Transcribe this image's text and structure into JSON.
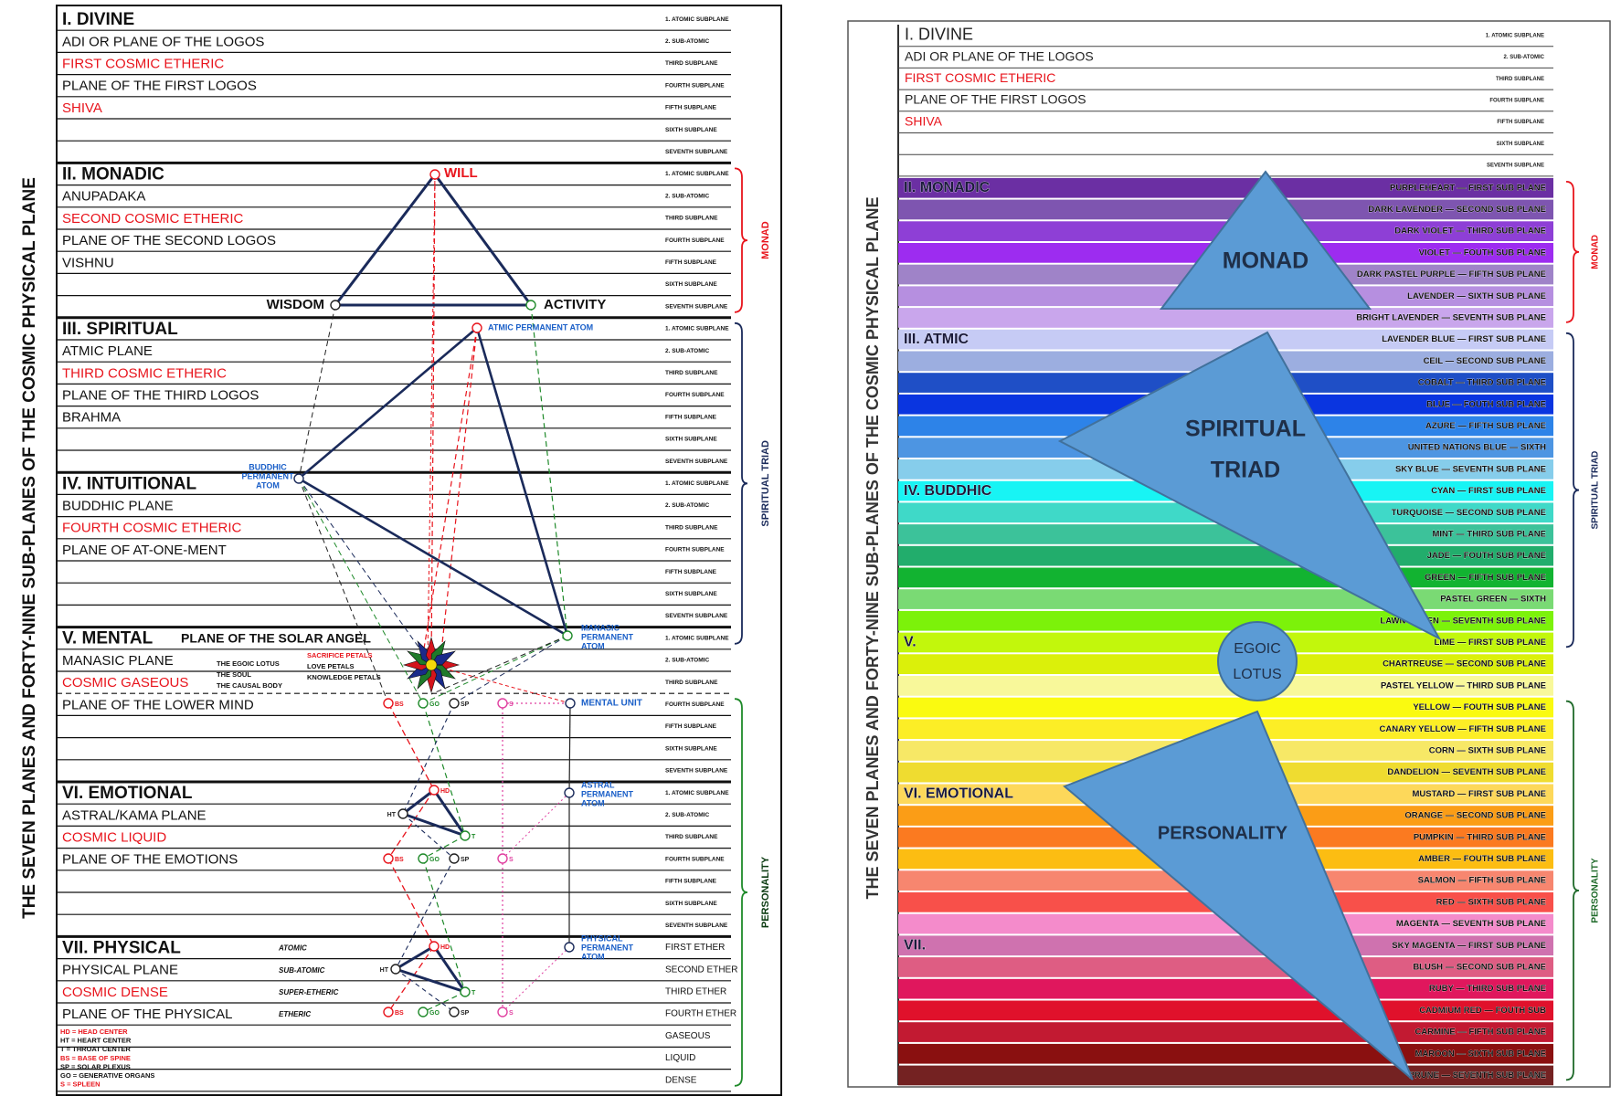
{
  "left": {
    "side_title": "THE SEVEN PLANES AND FORTY-NINE SUB-PLANES OF THE COSMIC PHYSICAL PLANE",
    "planes": [
      {
        "rows": [
          {
            "text": "I. DIVINE",
            "sub": "1. ATOMIC SUBPLANE"
          },
          {
            "text": "ADI OR PLANE OF THE LOGOS",
            "sub": "2. SUB-ATOMIC"
          },
          {
            "text": "FIRST COSMIC ETHERIC",
            "color": "#e8141c",
            "sub": "THIRD SUBPLANE"
          },
          {
            "text": "PLANE OF THE FIRST LOGOS",
            "sub": "FOURTH SUBPLANE"
          },
          {
            "text": "SHIVA",
            "color": "#e8141c",
            "sub": "FIFTH SUBPLANE"
          },
          {
            "sub": "SIXTH SUBPLANE"
          },
          {
            "sub": "SEVENTH SUBPLANE"
          }
        ]
      },
      {
        "rows": [
          {
            "text": "II. MONADIC",
            "sub": "1. ATOMIC SUBPLANE"
          },
          {
            "text": "ANUPADAKA",
            "sub": "2. SUB-ATOMIC"
          },
          {
            "text": "SECOND COSMIC ETHERIC",
            "color": "#e8141c",
            "sub": "THIRD SUBPLANE"
          },
          {
            "text": "PLANE OF THE SECOND LOGOS",
            "sub": "FOURTH SUBPLANE"
          },
          {
            "text": "VISHNU",
            "sub": "FIFTH SUBPLANE"
          },
          {
            "sub": "SIXTH SUBPLANE"
          },
          {
            "sub": "SEVENTH SUBPLANE"
          }
        ]
      },
      {
        "rows": [
          {
            "text": "III. SPIRITUAL",
            "sub": "1. ATOMIC SUBPLANE"
          },
          {
            "text": "ATMIC PLANE",
            "sub": "2. SUB-ATOMIC"
          },
          {
            "text": "THIRD COSMIC ETHERIC",
            "color": "#e8141c",
            "sub": "THIRD SUBPLANE"
          },
          {
            "text": "PLANE OF THE THIRD LOGOS",
            "sub": "FOURTH SUBPLANE"
          },
          {
            "text": "BRAHMA",
            "sub": "FIFTH SUBPLANE"
          },
          {
            "sub": "SIXTH SUBPLANE"
          },
          {
            "sub": "SEVENTH SUBPLANE"
          }
        ]
      },
      {
        "rows": [
          {
            "text": "IV. INTUITIONAL",
            "sub": "1. ATOMIC SUBPLANE"
          },
          {
            "text": "BUDDHIC PLANE",
            "sub": "2. SUB-ATOMIC"
          },
          {
            "text": "FOURTH COSMIC ETHERIC",
            "color": "#e8141c",
            "sub": "THIRD SUBPLANE"
          },
          {
            "text": "PLANE OF AT-ONE-MENT",
            "sub": "FOURTH SUBPLANE"
          },
          {
            "sub": "FIFTH SUBPLANE"
          },
          {
            "sub": "SIXTH SUBPLANE"
          },
          {
            "sub": "SEVENTH SUBPLANE"
          }
        ]
      },
      {
        "rows": [
          {
            "text": "V. MENTAL",
            "aside": "PLANE OF THE SOLAR ANGEL",
            "sub": "1. ATOMIC SUBPLANE"
          },
          {
            "text": "MANASIC PLANE",
            "sub": "2. SUB-ATOMIC"
          },
          {
            "text": "COSMIC GASEOUS",
            "color": "#e8141c",
            "sub": "THIRD SUBPLANE"
          },
          {
            "text": "PLANE OF THE LOWER MIND",
            "sub": "FOURTH SUBPLANE"
          },
          {
            "sub": "FIFTH SUBPLANE"
          },
          {
            "sub": "SIXTH SUBPLANE"
          },
          {
            "sub": "SEVENTH SUBPLANE"
          }
        ]
      },
      {
        "rows": [
          {
            "text": "VI. EMOTIONAL",
            "sub": "1. ATOMIC SUBPLANE"
          },
          {
            "text": "ASTRAL/KAMA PLANE",
            "sub": "2. SUB-ATOMIC"
          },
          {
            "text": "COSMIC LIQUID",
            "color": "#e8141c",
            "sub": "THIRD SUBPLANE"
          },
          {
            "text": "PLANE OF THE EMOTIONS",
            "sub": "FOURTH SUBPLANE"
          },
          {
            "sub": "FIFTH SUBPLANE"
          },
          {
            "sub": "SIXTH SUBPLANE"
          },
          {
            "sub": "SEVENTH SUBPLANE"
          }
        ]
      },
      {
        "rows": [
          {
            "text": "VII. PHYSICAL",
            "aside": "ATOMIC",
            "sub": "FIRST ETHER"
          },
          {
            "text": "PHYSICAL PLANE",
            "aside": "SUB-ATOMIC",
            "sub": "SECOND ETHER"
          },
          {
            "text": "COSMIC DENSE",
            "color": "#e8141c",
            "aside": "SUPER-ETHERIC",
            "sub": "THIRD ETHER"
          },
          {
            "text": "PLANE OF THE PHYSICAL",
            "aside": "ETHERIC",
            "sub": "FOURTH ETHER"
          },
          {
            "sub": "GASEOUS"
          },
          {
            "sub": "LIQUID"
          },
          {
            "sub": "DENSE"
          }
        ]
      }
    ],
    "brackets": [
      "MONAD",
      "SPIRITUAL TRIAD",
      "PERSONALITY"
    ],
    "triangle": {
      "will": "WILL",
      "wisdom": "WISDOM",
      "activity": "ACTIVITY"
    },
    "atoms": {
      "atmic": "ATMIC PERMANENT ATOM",
      "buddhic": [
        "BUDDHIC",
        "PERMANENT",
        "ATOM"
      ],
      "manasic": [
        "MANASIC",
        "PERMANENT",
        "ATOM"
      ],
      "mental_unit": "MENTAL UNIT",
      "astral": [
        "ASTRAL",
        "PERMANENT",
        "ATOM"
      ],
      "physical": [
        "PHYSICAL",
        "PERMANENT",
        "ATOM"
      ]
    },
    "lotus": {
      "names": [
        "THE EGOIC LOTUS",
        "THE SOUL",
        "THE CAUSAL BODY"
      ],
      "petals": [
        "SACRIFICE PETALS",
        "LOVE PETALS",
        "KNOWLEDGE PETALS"
      ]
    },
    "centers": [
      "HD",
      "HT",
      "T",
      "BS",
      "GO",
      "SP",
      "S"
    ],
    "legend": [
      "HD = HEAD CENTER",
      "HT = HEART CENTER",
      "T = THROAT CENTER",
      "BS = BASE OF SPINE",
      "SP = SOLAR PLEXUS",
      "GO = GENERATIVE ORGANS",
      "S = SPLEEN"
    ]
  },
  "right": {
    "side_title": "THE SEVEN PLANES AND FORTY-NINE SUB-PLANES OF THE COSMIC PHYSICAL PLANE",
    "planes": [
      {
        "header": "II. MONADIC",
        "rows": [
          {
            "label": "PURPLEHEART — FIRST SUB PLANE",
            "color": "#6b2fa3"
          },
          {
            "label": "DARK LAVENDER — SECOND SUB PLANE",
            "color": "#7e55b0"
          },
          {
            "label": "DARK VIOLET — THIRD SUB PLANE",
            "color": "#8e3fd6"
          },
          {
            "label": "VIOLET — FOUTH SUB PLANE",
            "color": "#9d2cf0"
          },
          {
            "label": "DARK PASTEL PURPLE — FIFTH SUB PLANE",
            "color": "#9f83c8"
          },
          {
            "label": "LAVENDER — SIXTH SUB PLANE",
            "color": "#b68fe0"
          },
          {
            "label": "BRIGHT LAVENDER — SEVENTH SUB PLANE",
            "color": "#c9a6ec"
          }
        ]
      },
      {
        "header": "III. ATMIC",
        "rows": [
          {
            "label": "LAVENDER BLUE — FIRST SUB PLANE",
            "color": "#c6cbf5"
          },
          {
            "label": "CEIL — SECOND SUB PLANE",
            "color": "#9caee0"
          },
          {
            "label": "COBALT — THIRD SUB PLANE",
            "color": "#1f4fc6"
          },
          {
            "label": "BLUE — FOUTH SUB PLANE",
            "color": "#0a35e0"
          },
          {
            "label": "AZURE — FIFTH SUB PLANE",
            "color": "#2d83e8"
          },
          {
            "label": "UNITED NATIONS BLUE — SIXTH",
            "color": "#4d95e2"
          },
          {
            "label": "SKY BLUE — SEVENTH SUB PLANE",
            "color": "#86cdeb"
          }
        ]
      },
      {
        "header": "IV. BUDDHIC",
        "rows": [
          {
            "label": "CYAN — FIRST SUB PLANE",
            "color": "#18f4f4"
          },
          {
            "label": "TURQUOISE — SECOND SUB PLANE",
            "color": "#3fd9c8"
          },
          {
            "label": "MINT — THIRD SUB PLANE",
            "color": "#3cc29a"
          },
          {
            "label": "JADE — FOUTH SUB PLANE",
            "color": "#22ad6c"
          },
          {
            "label": "GREEN — FIFTH SUB PLANE",
            "color": "#12b331"
          },
          {
            "label": "PASTEL GREEN — SIXTH",
            "color": "#7ada74"
          },
          {
            "label": "LAWN GREEN — SEVENTH SUB PLANE",
            "color": "#7cf20a"
          }
        ]
      },
      {
        "header": "V.",
        "rows": [
          {
            "label": "LIME — FIRST SUB PLANE",
            "color": "#c2f70c"
          },
          {
            "label": "CHARTREUSE — SECOND SUB PLANE",
            "color": "#dbf00a"
          },
          {
            "label": "PASTEL YELLOW — THIRD SUB PLANE",
            "color": "#f8f89a"
          },
          {
            "label": "YELLOW — FOUTH SUB PLANE",
            "color": "#fafa10"
          },
          {
            "label": "CANARY YELLOW — FIFTH SUB PLANE",
            "color": "#fcee26"
          },
          {
            "label": "CORN — SIXTH SUB PLANE",
            "color": "#f7e866"
          },
          {
            "label": "DANDELION — SEVENTH SUB PLANE",
            "color": "#efdc30"
          }
        ]
      },
      {
        "header": "VI. EMOTIONAL",
        "rows": [
          {
            "label": "MUSTARD — FIRST SUB PLANE",
            "color": "#fdd85a"
          },
          {
            "label": "ORANGE — SECOND SUB PLANE",
            "color": "#fb9d16"
          },
          {
            "label": "PUMPKIN — THIRD SUB PLANE",
            "color": "#fb7a20"
          },
          {
            "label": "AMBER — FOUTH SUB PLANE",
            "color": "#fcbd12"
          },
          {
            "label": "SALMON — FIFTH SUB PLANE",
            "color": "#f7866f"
          },
          {
            "label": "RED — SIXTH SUB PLANE",
            "color": "#f8504a"
          },
          {
            "label": "MAGENTA — SEVENTH SUB PLANE",
            "color": "#f48bcb"
          }
        ]
      },
      {
        "header": "VII.",
        "rows": [
          {
            "label": "SKY MAGENTA — FIRST SUB PLANE",
            "color": "#cf72af"
          },
          {
            "label": "BLUSH — SECOND SUB PLANE",
            "color": "#de5d83"
          },
          {
            "label": "RUBY — THIRD SUB PLANE",
            "color": "#e0175d"
          },
          {
            "label": "CADMIUM RED — FOUTH SUB",
            "color": "#e0112b"
          },
          {
            "label": "CARMINE — FIFTH SUB PLANE",
            "color": "#c21a32"
          },
          {
            "label": "MAROON — SIXTH SUB PLANE",
            "color": "#8a1010"
          },
          {
            "label": "PRUNE — SEVENTH SUB PLANE",
            "color": "#742222"
          }
        ]
      }
    ],
    "brackets": [
      "MONAD",
      "SPIRITUAL TRIAD",
      "PERSONALITY"
    ],
    "overlays": {
      "monad": "MONAD",
      "triad": [
        "SPIRITUAL",
        "TRIAD"
      ],
      "lotus": [
        "EGOIC",
        "LOTUS"
      ],
      "personality": "PERSONALITY"
    }
  }
}
